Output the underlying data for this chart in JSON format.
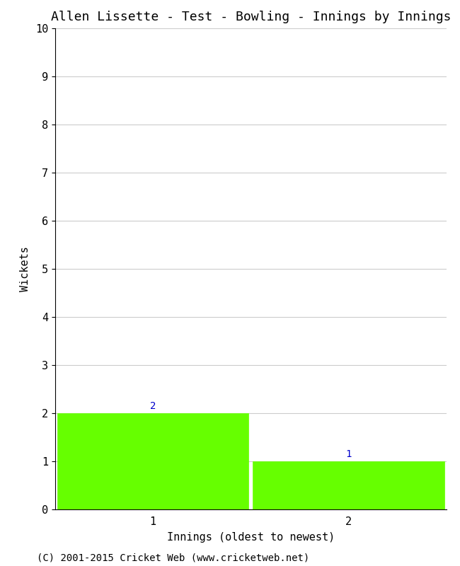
{
  "title": "Allen Lissette - Test - Bowling - Innings by Innings",
  "xlabel": "Innings (oldest to newest)",
  "ylabel": "Wickets",
  "categories": [
    1,
    2
  ],
  "values": [
    2,
    1
  ],
  "bar_color": "#66ff00",
  "bar_edge_color": "#66ff00",
  "ylim": [
    0,
    10
  ],
  "yticks": [
    0,
    1,
    2,
    3,
    4,
    5,
    6,
    7,
    8,
    9,
    10
  ],
  "xticks": [
    1,
    2
  ],
  "background_color": "#ffffff",
  "grid_color": "#cccccc",
  "footer": "(C) 2001-2015 Cricket Web (www.cricketweb.net)",
  "annotation_color": "#0000cc",
  "title_fontsize": 13,
  "axis_fontsize": 11,
  "tick_fontsize": 11,
  "footer_fontsize": 10,
  "annotation_fontsize": 10,
  "xlim": [
    0.5,
    2.5
  ]
}
